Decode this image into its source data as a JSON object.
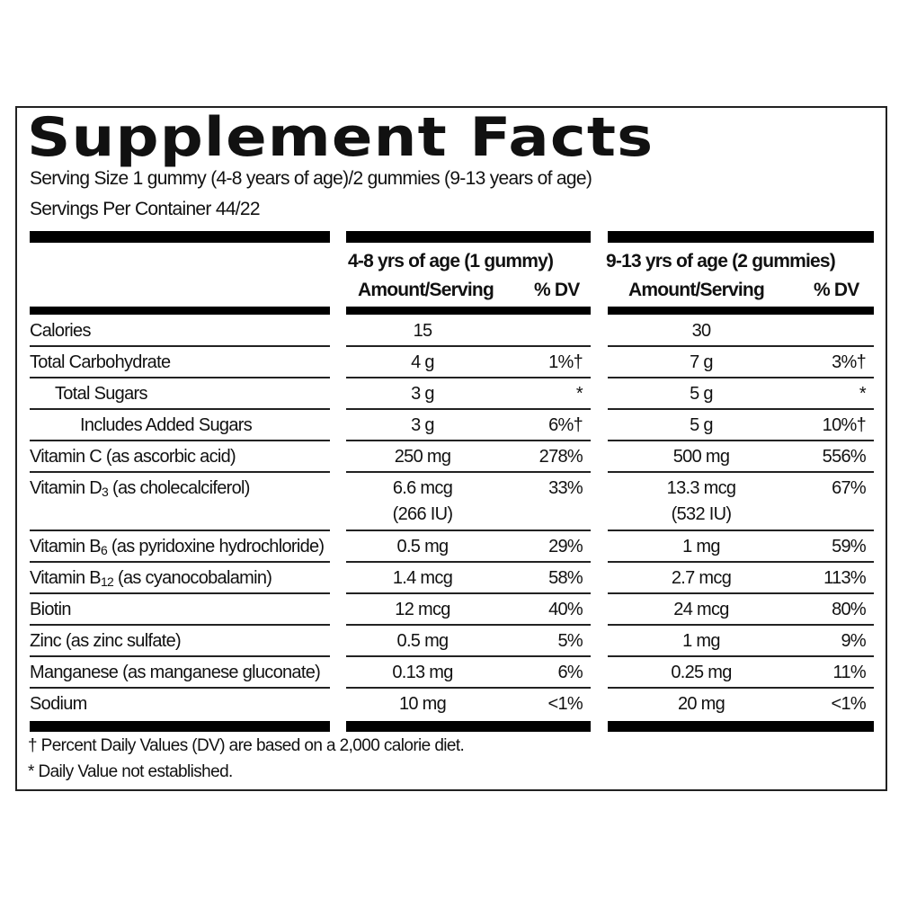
{
  "title": "Supplement Facts",
  "serving_size": "Serving Size 1 gummy (4-8 years of age)/2 gummies (9-13 years of age)",
  "servings_per_container": "Servings Per Container 44/22",
  "columns": [
    {
      "group": "4-8 yrs of age (1 gummy)",
      "amount_header": "Amount/Serving",
      "dv_header": "% DV"
    },
    {
      "group": "9-13 yrs of age (2 gummies)",
      "amount_header": "Amount/Serving",
      "dv_header": "% DV"
    }
  ],
  "rows": [
    {
      "label": "Calories",
      "sub": "",
      "note": "",
      "indent": 0,
      "a1": "15",
      "d1": "",
      "a2": "30",
      "d2": ""
    },
    {
      "label": "Total Carbohydrate",
      "sub": "",
      "note": "",
      "indent": 0,
      "a1": "4 g",
      "d1": "1%†",
      "a2": "7 g",
      "d2": "3%†"
    },
    {
      "label": "Total Sugars",
      "sub": "",
      "note": "",
      "indent": 1,
      "a1": "3 g",
      "d1": "*",
      "a2": "5 g",
      "d2": "*"
    },
    {
      "label": "Includes Added Sugars",
      "sub": "",
      "note": "",
      "indent": 2,
      "a1": "3 g",
      "d1": "6%†",
      "a2": "5 g",
      "d2": "10%†"
    },
    {
      "label": "Vitamin C (as ascorbic acid)",
      "sub": "",
      "note": "",
      "indent": 0,
      "a1": "250 mg",
      "d1": "278%",
      "a2": "500 mg",
      "d2": "556%"
    },
    {
      "label": "Vitamin D",
      "sub": "3",
      "note": " (as cholecalciferol)",
      "indent": 0,
      "a1": "6.6 mcg",
      "a1b": "(266 IU)",
      "d1": "33%",
      "a2": "13.3 mcg",
      "a2b": "(532 IU)",
      "d2": "67%"
    },
    {
      "label": "Vitamin B",
      "sub": "6",
      "note": " (as pyridoxine hydrochloride)",
      "indent": 0,
      "a1": "0.5 mg",
      "d1": "29%",
      "a2": "1 mg",
      "d2": "59%"
    },
    {
      "label": "Vitamin B",
      "sub": "12",
      "note": " (as cyanocobalamin)",
      "indent": 0,
      "a1": "1.4 mcg",
      "d1": "58%",
      "a2": "2.7 mcg",
      "d2": "113%"
    },
    {
      "label": "Biotin",
      "sub": "",
      "note": "",
      "indent": 0,
      "a1": "12 mcg",
      "d1": "40%",
      "a2": "24 mcg",
      "d2": "80%"
    },
    {
      "label": "Zinc (as zinc sulfate)",
      "sub": "",
      "note": "",
      "indent": 0,
      "a1": "0.5 mg",
      "d1": "5%",
      "a2": "1 mg",
      "d2": "9%"
    },
    {
      "label": "Manganese (as manganese gluconate)",
      "sub": "",
      "note": "",
      "indent": 0,
      "a1": "0.13 mg",
      "d1": "6%",
      "a2": "0.25 mg",
      "d2": "11%"
    },
    {
      "label": "Sodium",
      "sub": "",
      "note": "",
      "indent": 0,
      "a1": "10 mg",
      "d1": "<1%",
      "a2": "20 mg",
      "d2": "<1%"
    }
  ],
  "footnotes": [
    "† Percent Daily Values (DV) are based on a 2,000 calorie diet.",
    "* Daily Value not established."
  ]
}
